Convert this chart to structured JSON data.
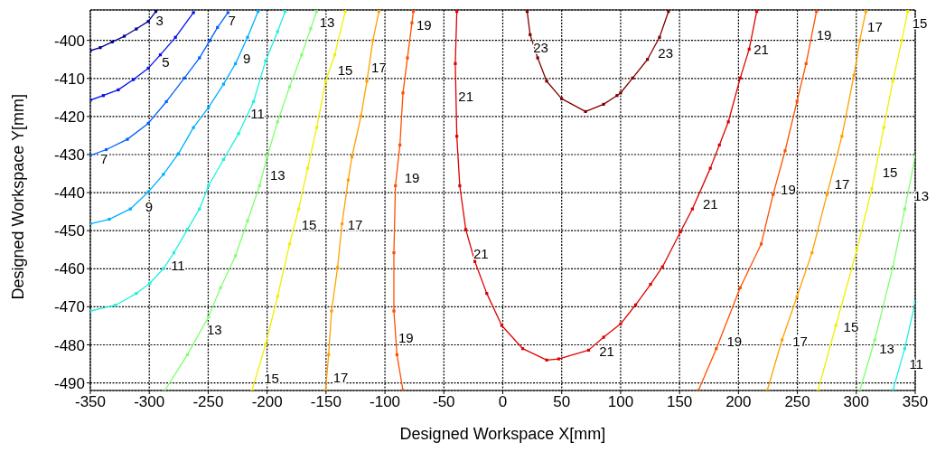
{
  "chart_data": {
    "type": "line",
    "xlabel": "Designed Workspace X[mm]",
    "ylabel": "Designed Workspace Y[mm]",
    "xlim": [
      -350,
      350
    ],
    "xticks": [
      -350,
      -300,
      -250,
      -200,
      -150,
      -100,
      -50,
      0,
      50,
      100,
      150,
      200,
      250,
      300,
      350
    ],
    "ylim": [
      -492,
      -392
    ],
    "yticks": [
      -490,
      -480,
      -470,
      -460,
      -450,
      -440,
      -430,
      -420,
      -410,
      -400
    ],
    "grid": true,
    "marker": "square",
    "line_style": "solid",
    "series": [
      {
        "color": "#00008f",
        "x": [
          -350,
          -341.6,
          -331.4,
          -321.2,
          -311,
          -300.8,
          -294.4
        ],
        "values": [
          -402.7,
          -401.9,
          -400.4,
          -398.9,
          -397,
          -395,
          -392.4
        ]
      },
      {
        "color": "#0010f0",
        "x": [
          -350,
          -339,
          -326.3,
          -313.5,
          -300.8,
          -290.6,
          -277.8,
          -262.5
        ],
        "values": [
          -415.7,
          -414.5,
          -413,
          -410.3,
          -407.3,
          -403.8,
          -399.2,
          -392.7
        ]
      },
      {
        "color": "#0060ff",
        "x": [
          -350,
          -336.5,
          -318.6,
          -300.8,
          -285.5,
          -270.2,
          -257.4,
          -248.5,
          -242.1,
          -233.2
        ],
        "values": [
          -430.2,
          -428.7,
          -426,
          -421.8,
          -416.1,
          -409.9,
          -404.6,
          -400,
          -396.6,
          -392.7
        ]
      },
      {
        "color": "#00b0ff",
        "x": [
          -350,
          -333.9,
          -316.1,
          -300.8,
          -288,
          -275.3,
          -262.5,
          -249.7,
          -237,
          -226.8,
          -216.6,
          -207.7
        ],
        "values": [
          -448.2,
          -447,
          -444.3,
          -439.8,
          -435.2,
          -429.8,
          -422.9,
          -417.6,
          -411.5,
          -406.1,
          -399.2,
          -392.4
        ]
      },
      {
        "color": "#20f0e0",
        "x": [
          -350,
          -328.8,
          -311,
          -299.5,
          -288,
          -279.1,
          -267.6,
          -257.4,
          -249.7,
          -237,
          -224.2,
          -211.5,
          -201.3,
          -191.1,
          -184.7
        ],
        "values": [
          -471.1,
          -469.6,
          -466.5,
          -463.8,
          -460,
          -455.8,
          -449.7,
          -444.3,
          -438.2,
          -431.3,
          -424.5,
          -416.1,
          -405.4,
          -397.7,
          -392.4
        ]
      },
      {
        "color": "#80ff70",
        "x": [
          -286.8,
          -267.6,
          -249.7,
          -239.5,
          -226.8,
          -216.6,
          -206.4,
          -200,
          -191.1,
          -180.9,
          -170.7,
          -163,
          -158
        ],
        "values": [
          -492,
          -482.6,
          -472.6,
          -465,
          -456.6,
          -447.4,
          -438.2,
          -430.6,
          -421.4,
          -412.2,
          -403.8,
          -396.9,
          -392.4
        ]
      },
      {
        "color": "#f0f000",
        "x": [
          -212.8,
          -201.3,
          -191.1,
          -180.9,
          -173.2,
          -165.6,
          -157.9,
          -150.3,
          -142.6,
          -133.7
        ],
        "values": [
          -492,
          -479.9,
          -467.3,
          -453.5,
          -444.3,
          -433.6,
          -422.9,
          -410.7,
          -403.8,
          -392.4
        ]
      },
      {
        "color": "#ffa000",
        "x": [
          -150.4,
          -147.8,
          -145.3,
          -140.2,
          -136.4,
          -131.2,
          -128,
          -120.3,
          -115.3,
          -110.2,
          -105.1
        ],
        "values": [
          -492,
          -482.6,
          -471.1,
          -459.7,
          -448.2,
          -436.7,
          -430.6,
          -419.9,
          -410.7,
          -400,
          -392.4
        ]
      },
      {
        "color": "#ff5000",
        "x": [
          -84.7,
          -89.8,
          -92.4,
          -92.4,
          -91.1,
          -87.3,
          -84.7,
          -80.9,
          -77.1,
          -75.9
        ],
        "values": [
          -492,
          -482.6,
          -471.1,
          -455.8,
          -438.2,
          -427.5,
          -413.8,
          -404.6,
          -395.4,
          -392.4
        ]
      },
      {
        "color": "#e00000",
        "x": [
          -39,
          -40.3,
          -39,
          -36.5,
          -31.4,
          -23.7,
          -13.6,
          -0.9,
          16.9,
          37.3,
          47.4,
          72.8,
          85.6,
          100,
          112.7,
          125.4,
          135.5,
          150.8,
          160.9,
          176.1,
          183.8,
          191.4,
          201.5,
          209.1,
          215.5
        ],
        "values": [
          -392.4,
          -406.1,
          -425.2,
          -438.2,
          -449.7,
          -458.1,
          -466.5,
          -474.9,
          -481,
          -484,
          -483.7,
          -481.4,
          -478,
          -474.5,
          -469.5,
          -464.1,
          -459.5,
          -450.3,
          -444.3,
          -433.6,
          -427.5,
          -421.4,
          -409.9,
          -402.3,
          -392.4
        ]
      },
      {
        "color": "#800000",
        "x": [
          20.7,
          23.2,
          29.6,
          37.2,
          49.9,
          70.2,
          85.5,
          96.9,
          100,
          110.2,
          122.8,
          133,
          140.6
        ],
        "values": [
          -392.4,
          -398.5,
          -404.6,
          -410.7,
          -415.3,
          -418.7,
          -416.8,
          -414.5,
          -413.8,
          -409.9,
          -405,
          -399.2,
          -392.4
        ]
      },
      {
        "color": "#ff5000",
        "x": [
          166,
          181.2,
          201.5,
          219.3,
          229.4,
          239.6,
          249.7,
          257.4,
          266.2
        ],
        "values": [
          -492,
          -481,
          -465,
          -453.5,
          -440.5,
          -429,
          -416,
          -406.1,
          -392.4
        ]
      },
      {
        "color": "#ffa000",
        "x": [
          224.4,
          237,
          249.7,
          262.4,
          275.1,
          287.8,
          298,
          303,
          308.1
        ],
        "values": [
          -492,
          -478.7,
          -467.3,
          -455.8,
          -440.5,
          -425.2,
          -409.2,
          -400,
          -392.4
        ]
      },
      {
        "color": "#f0f000",
        "x": [
          267.5,
          282.7,
          300.5,
          313.2,
          323.3,
          331,
          338.6,
          343.6
        ],
        "values": [
          -492,
          -474.9,
          -455,
          -439,
          -422.9,
          -410.7,
          -400,
          -392.4
        ]
      },
      {
        "color": "#80ff70",
        "x": [
          303,
          315.7,
          331,
          341.1,
          350
        ],
        "values": [
          -492,
          -478.7,
          -459.6,
          -444.3,
          -430.6
        ]
      },
      {
        "color": "#20f0e0",
        "x": [
          331,
          341.1,
          350
        ],
        "values": [
          -492,
          -481,
          -468.8
        ]
      }
    ],
    "annotations": [
      {
        "text": "3",
        "x": -298.2,
        "y": -393.9
      },
      {
        "text": "5",
        "x": -293.1,
        "y": -404.6
      },
      {
        "text": "7",
        "x": -345.4,
        "y": -430.2
      },
      {
        "text": "7",
        "x": -237,
        "y": -393.9
      },
      {
        "text": "9",
        "x": -307.2,
        "y": -442.8
      },
      {
        "text": "9",
        "x": -224.3,
        "y": -403.8
      },
      {
        "text": "11",
        "x": -285.5,
        "y": -458.1
      },
      {
        "text": "11",
        "x": -217.9,
        "y": -418.3
      },
      {
        "text": "13",
        "x": -254.9,
        "y": -474.9
      },
      {
        "text": "13",
        "x": -201.3,
        "y": -434.4
      },
      {
        "text": "13",
        "x": -159.3,
        "y": -394.3
      },
      {
        "text": "15",
        "x": -206.4,
        "y": -487.9
      },
      {
        "text": "15",
        "x": -174.6,
        "y": -447.4
      },
      {
        "text": "15",
        "x": -144,
        "y": -406.9
      },
      {
        "text": "17",
        "x": -147.8,
        "y": -487.6
      },
      {
        "text": "17",
        "x": -135.6,
        "y": -447.4
      },
      {
        "text": "17",
        "x": -115.3,
        "y": -406.1
      },
      {
        "text": "19",
        "x": -77.1,
        "y": -395
      },
      {
        "text": "19",
        "x": -87.3,
        "y": -435.2
      },
      {
        "text": "19",
        "x": -92.4,
        "y": -477.2
      },
      {
        "text": "21",
        "x": -41.5,
        "y": -413.8
      },
      {
        "text": "21",
        "x": -28.8,
        "y": -455
      },
      {
        "text": "21",
        "x": 78,
        "y": -480.7
      },
      {
        "text": "23",
        "x": 22,
        "y": -400.8
      },
      {
        "text": "23",
        "x": 127.9,
        "y": -402.3
      },
      {
        "text": "21",
        "x": 209.1,
        "y": -401.5
      },
      {
        "text": "21",
        "x": 166,
        "y": -442
      },
      {
        "text": "19",
        "x": 262.4,
        "y": -397.7
      },
      {
        "text": "19",
        "x": 232,
        "y": -438.2
      },
      {
        "text": "19",
        "x": 186.3,
        "y": -478
      },
      {
        "text": "17",
        "x": 305.6,
        "y": -395.4
      },
      {
        "text": "17",
        "x": 277.7,
        "y": -436.7
      },
      {
        "text": "17",
        "x": 242.1,
        "y": -478
      },
      {
        "text": "15",
        "x": 343.6,
        "y": -394.5
      },
      {
        "text": "15",
        "x": 318.3,
        "y": -433.6
      },
      {
        "text": "15",
        "x": 285.3,
        "y": -474.2
      },
      {
        "text": "13",
        "x": 344.9,
        "y": -439.8
      },
      {
        "text": "13",
        "x": 315.7,
        "y": -479.9
      },
      {
        "text": "11",
        "x": 341.1,
        "y": -484
      }
    ]
  }
}
